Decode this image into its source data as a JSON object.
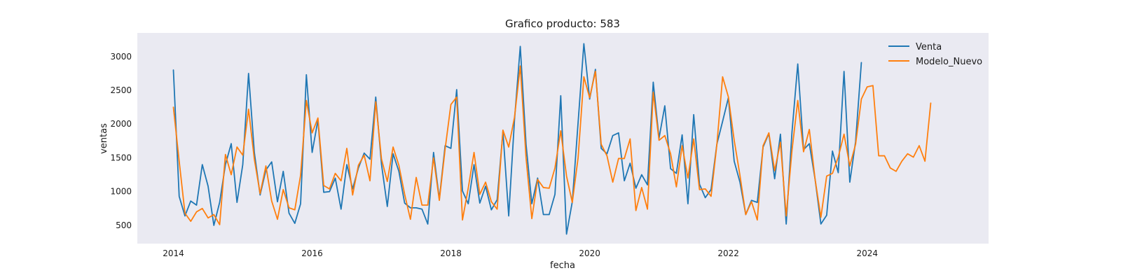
{
  "chart_data": {
    "type": "line",
    "title": "Grafico producto: 583",
    "xlabel": "fecha",
    "ylabel": "ventas",
    "xlim": [
      2013.48,
      2025.75
    ],
    "ylim": [
      230,
      3350
    ],
    "x_ticks": [
      {
        "value": 2014,
        "label": "2014"
      },
      {
        "value": 2016,
        "label": "2016"
      },
      {
        "value": 2018,
        "label": "2018"
      },
      {
        "value": 2020,
        "label": "2020"
      },
      {
        "value": 2022,
        "label": "2022"
      },
      {
        "value": 2024,
        "label": "2024"
      }
    ],
    "y_ticks": [
      {
        "value": 500,
        "label": "500"
      },
      {
        "value": 1000,
        "label": "1000"
      },
      {
        "value": 1500,
        "label": "1500"
      },
      {
        "value": 2000,
        "label": "2000"
      },
      {
        "value": 2500,
        "label": "2500"
      },
      {
        "value": 3000,
        "label": "3000"
      }
    ],
    "grid": false,
    "background": "#eaeaf2",
    "legend_position": "upper right",
    "x_start": 2014.0,
    "x_step": 0.08333,
    "series": [
      {
        "name": "Venta",
        "color": "#1f77b4",
        "values": [
          2800,
          930,
          640,
          860,
          800,
          1400,
          1080,
          500,
          840,
          1400,
          1710,
          840,
          1400,
          2750,
          1580,
          950,
          1320,
          1440,
          850,
          1300,
          680,
          530,
          820,
          2730,
          1580,
          2060,
          990,
          1000,
          1200,
          740,
          1400,
          1040,
          1350,
          1570,
          1480,
          2400,
          1400,
          780,
          1560,
          1300,
          830,
          760,
          760,
          740,
          520,
          1580,
          890,
          1680,
          1640,
          2510,
          1010,
          820,
          1400,
          830,
          1080,
          730,
          880,
          1890,
          640,
          2060,
          3150,
          1700,
          820,
          1200,
          660,
          660,
          960,
          2420,
          370,
          850,
          2020,
          3190,
          2370,
          2810,
          1640,
          1560,
          1830,
          1870,
          1160,
          1420,
          1050,
          1250,
          1100,
          2620,
          1790,
          2270,
          1340,
          1270,
          1840,
          820,
          2140,
          1110,
          910,
          1030,
          1700,
          2040,
          2390,
          1450,
          1140,
          660,
          870,
          840,
          1660,
          1860,
          1190,
          1850,
          520,
          1880,
          2890,
          1620,
          1710,
          1180,
          520,
          650,
          1600,
          1280,
          2780,
          1140,
          1740,
          2910
        ]
      },
      {
        "name": "Modelo_Nuevo",
        "color": "#ff7f0e",
        "values": [
          2250,
          1450,
          680,
          560,
          700,
          750,
          610,
          660,
          510,
          1550,
          1250,
          1660,
          1540,
          2220,
          1480,
          970,
          1380,
          860,
          590,
          1030,
          760,
          730,
          1240,
          2350,
          1870,
          2090,
          1090,
          1040,
          1270,
          1160,
          1640,
          950,
          1390,
          1540,
          1160,
          2330,
          1480,
          1150,
          1660,
          1390,
          960,
          590,
          1210,
          800,
          800,
          1500,
          870,
          1630,
          2290,
          2400,
          580,
          1050,
          1580,
          960,
          1140,
          850,
          740,
          1910,
          1660,
          2100,
          2860,
          1500,
          600,
          1180,
          1060,
          1050,
          1350,
          1900,
          1230,
          840,
          1500,
          2700,
          2390,
          2780,
          1700,
          1530,
          1140,
          1490,
          1490,
          1780,
          720,
          1060,
          740,
          2470,
          1760,
          1830,
          1560,
          1070,
          1680,
          1200,
          1780,
          1030,
          1040,
          930,
          1690,
          2700,
          2400,
          1760,
          1240,
          660,
          850,
          580,
          1680,
          1870,
          1310,
          1730,
          640,
          1610,
          2350,
          1590,
          1920,
          1180,
          620,
          1230,
          1270,
          1510,
          1850,
          1380,
          1700,
          2370,
          2550,
          2570,
          1530,
          1530,
          1350,
          1300,
          1450,
          1560,
          1510,
          1680,
          1450,
          2310
        ]
      }
    ]
  }
}
